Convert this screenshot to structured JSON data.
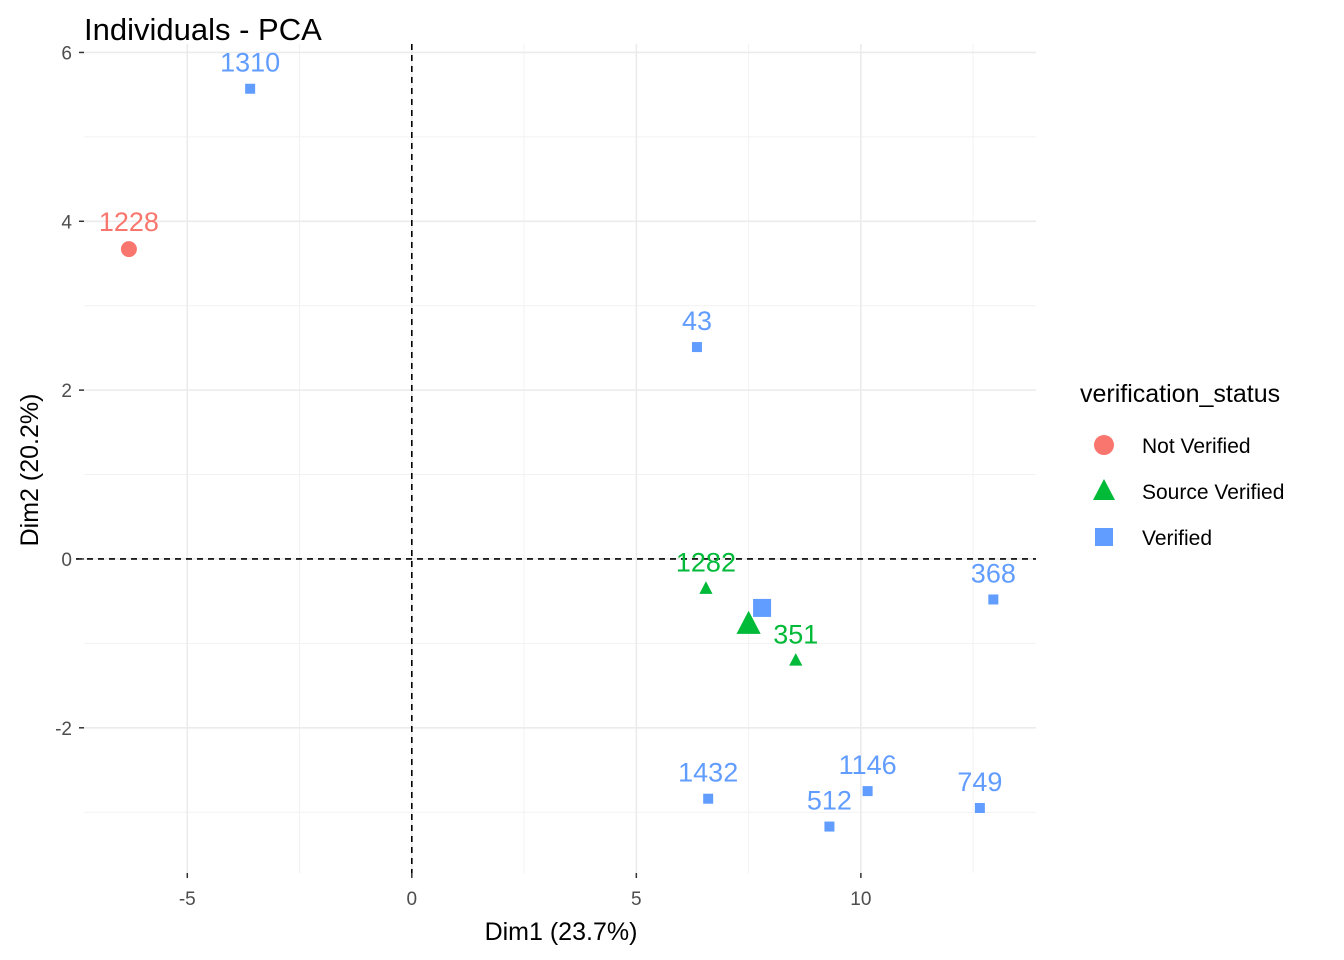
{
  "chart_data": {
    "type": "scatter",
    "title": "Individuals - PCA",
    "xlabel": "Dim1 (23.7%)",
    "ylabel": "Dim2 (20.2%)",
    "xlim": [
      -7.3,
      13.9
    ],
    "ylim": [
      -3.72,
      6.1
    ],
    "xticks": [
      -5,
      0,
      5,
      10
    ],
    "yticks": [
      -2,
      0,
      2,
      4,
      6
    ],
    "xtick_labels": [
      "-5",
      "0",
      "5",
      "10"
    ],
    "ytick_labels": [
      "-2",
      "0",
      "2",
      "4",
      "6"
    ],
    "grid": true,
    "legend": {
      "title": "verification_status",
      "position": "right"
    },
    "series": [
      {
        "name": "Not Verified",
        "color": "#F8766D",
        "marker": "circle",
        "points": [
          {
            "label": "1228",
            "x": -6.3,
            "y": 3.67
          }
        ],
        "centroid": null
      },
      {
        "name": "Source Verified",
        "color": "#00BA38",
        "marker": "triangle",
        "points": [
          {
            "label": "1282",
            "x": 6.55,
            "y": -0.35
          },
          {
            "label": "351",
            "x": 8.55,
            "y": -1.2
          }
        ],
        "centroid": {
          "x": 7.5,
          "y": -0.77
        }
      },
      {
        "name": "Verified",
        "color": "#619CFF",
        "marker": "square",
        "points": [
          {
            "label": "1310",
            "x": -3.6,
            "y": 5.57
          },
          {
            "label": "43",
            "x": 6.35,
            "y": 2.51
          },
          {
            "label": "368",
            "x": 12.95,
            "y": -0.48
          },
          {
            "label": "1432",
            "x": 6.6,
            "y": -2.84
          },
          {
            "label": "1146",
            "x": 10.15,
            "y": -2.75
          },
          {
            "label": "512",
            "x": 9.3,
            "y": -3.17
          },
          {
            "label": "749",
            "x": 12.65,
            "y": -2.95
          }
        ],
        "centroid": {
          "x": 7.8,
          "y": -0.58
        }
      }
    ]
  }
}
